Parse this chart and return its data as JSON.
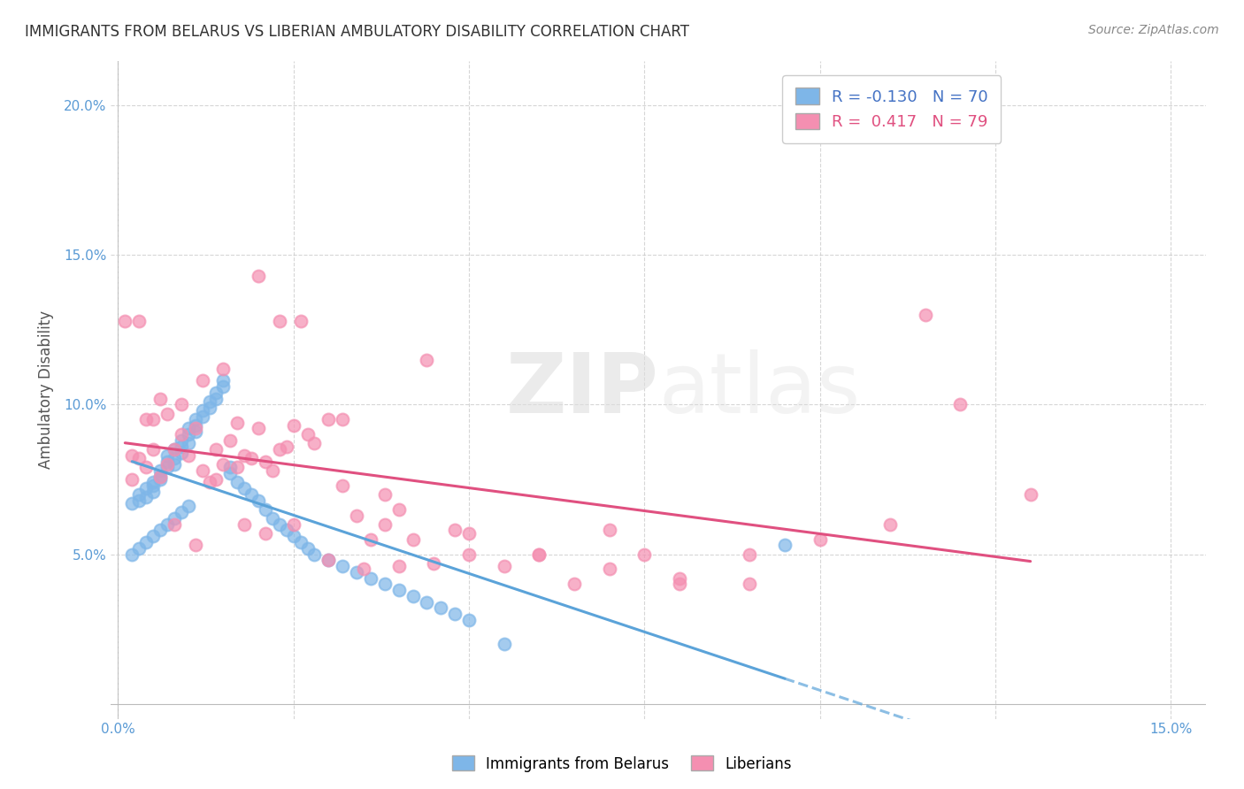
{
  "title": "IMMIGRANTS FROM BELARUS VS LIBERIAN AMBULATORY DISABILITY CORRELATION CHART",
  "source": "Source: ZipAtlas.com",
  "ylabel": "Ambulatory Disability",
  "legend_r_blue": "-0.130",
  "legend_n_blue": "70",
  "legend_r_pink": "0.417",
  "legend_n_pink": "79",
  "blue_color": "#7EB6E8",
  "pink_color": "#F48FB1",
  "pink_line_color": "#E05080",
  "blue_line_color": "#5BA3D9",
  "watermark": "ZIPatlas",
  "blue_scatter_x": [
    0.002,
    0.003,
    0.003,
    0.004,
    0.004,
    0.005,
    0.005,
    0.005,
    0.006,
    0.006,
    0.006,
    0.007,
    0.007,
    0.007,
    0.008,
    0.008,
    0.008,
    0.009,
    0.009,
    0.009,
    0.01,
    0.01,
    0.01,
    0.011,
    0.011,
    0.011,
    0.012,
    0.012,
    0.013,
    0.013,
    0.014,
    0.014,
    0.015,
    0.015,
    0.016,
    0.016,
    0.017,
    0.018,
    0.019,
    0.02,
    0.021,
    0.022,
    0.023,
    0.024,
    0.025,
    0.026,
    0.027,
    0.028,
    0.03,
    0.032,
    0.034,
    0.036,
    0.038,
    0.04,
    0.042,
    0.044,
    0.046,
    0.048,
    0.05,
    0.055,
    0.002,
    0.003,
    0.004,
    0.005,
    0.006,
    0.007,
    0.008,
    0.009,
    0.01,
    0.095
  ],
  "blue_scatter_y": [
    0.067,
    0.07,
    0.068,
    0.072,
    0.069,
    0.074,
    0.073,
    0.071,
    0.075,
    0.078,
    0.076,
    0.079,
    0.081,
    0.083,
    0.085,
    0.082,
    0.08,
    0.086,
    0.088,
    0.084,
    0.09,
    0.087,
    0.092,
    0.095,
    0.093,
    0.091,
    0.098,
    0.096,
    0.101,
    0.099,
    0.104,
    0.102,
    0.106,
    0.108,
    0.079,
    0.077,
    0.074,
    0.072,
    0.07,
    0.068,
    0.065,
    0.062,
    0.06,
    0.058,
    0.056,
    0.054,
    0.052,
    0.05,
    0.048,
    0.046,
    0.044,
    0.042,
    0.04,
    0.038,
    0.036,
    0.034,
    0.032,
    0.03,
    0.028,
    0.02,
    0.05,
    0.052,
    0.054,
    0.056,
    0.058,
    0.06,
    0.062,
    0.064,
    0.066,
    0.053
  ],
  "pink_scatter_x": [
    0.002,
    0.003,
    0.004,
    0.005,
    0.006,
    0.007,
    0.008,
    0.009,
    0.01,
    0.011,
    0.012,
    0.013,
    0.014,
    0.015,
    0.016,
    0.017,
    0.018,
    0.019,
    0.02,
    0.021,
    0.022,
    0.023,
    0.024,
    0.025,
    0.027,
    0.028,
    0.03,
    0.032,
    0.034,
    0.036,
    0.038,
    0.04,
    0.042,
    0.045,
    0.048,
    0.05,
    0.055,
    0.06,
    0.065,
    0.07,
    0.075,
    0.08,
    0.09,
    0.1,
    0.11,
    0.12,
    0.003,
    0.005,
    0.007,
    0.009,
    0.012,
    0.015,
    0.018,
    0.021,
    0.025,
    0.03,
    0.035,
    0.04,
    0.05,
    0.06,
    0.07,
    0.08,
    0.09,
    0.004,
    0.006,
    0.008,
    0.011,
    0.014,
    0.017,
    0.02,
    0.023,
    0.026,
    0.032,
    0.038,
    0.044,
    0.115,
    0.13,
    0.002,
    0.001
  ],
  "pink_scatter_y": [
    0.075,
    0.082,
    0.079,
    0.085,
    0.076,
    0.08,
    0.085,
    0.09,
    0.083,
    0.092,
    0.078,
    0.074,
    0.075,
    0.08,
    0.088,
    0.079,
    0.083,
    0.082,
    0.092,
    0.081,
    0.078,
    0.085,
    0.086,
    0.093,
    0.09,
    0.087,
    0.095,
    0.073,
    0.063,
    0.055,
    0.06,
    0.065,
    0.055,
    0.047,
    0.058,
    0.057,
    0.046,
    0.05,
    0.04,
    0.058,
    0.05,
    0.04,
    0.05,
    0.055,
    0.06,
    0.1,
    0.128,
    0.095,
    0.097,
    0.1,
    0.108,
    0.112,
    0.06,
    0.057,
    0.06,
    0.048,
    0.045,
    0.046,
    0.05,
    0.05,
    0.045,
    0.042,
    0.04,
    0.095,
    0.102,
    0.06,
    0.053,
    0.085,
    0.094,
    0.143,
    0.128,
    0.128,
    0.095,
    0.07,
    0.115,
    0.13,
    0.07,
    0.083,
    0.128
  ]
}
